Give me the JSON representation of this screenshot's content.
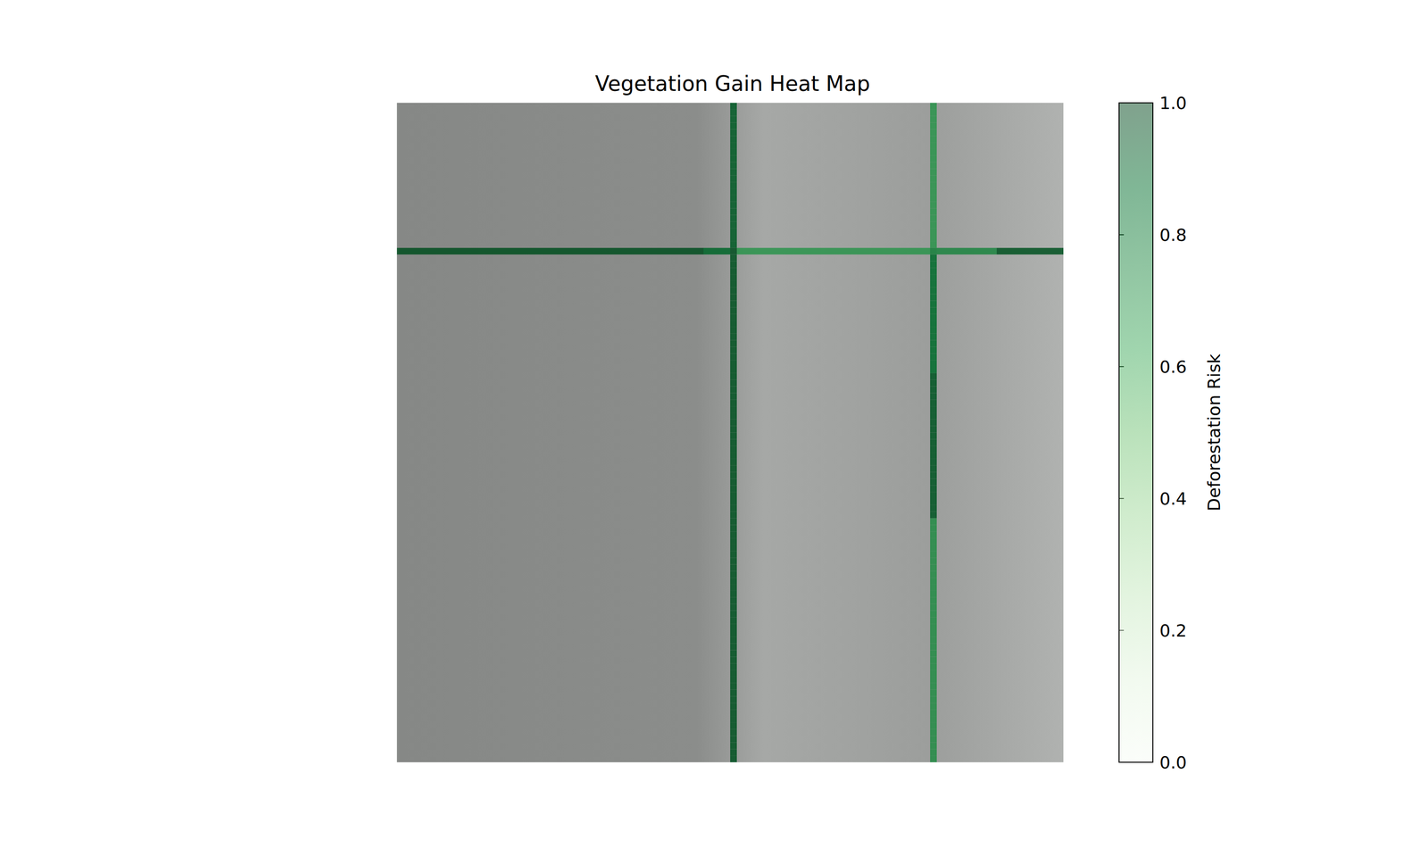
{
  "chart_data": {
    "type": "heatmap",
    "title": "Vegetation Gain Heat Map",
    "xlim": [
      0,
      100
    ],
    "ylim": [
      0,
      100
    ],
    "tick_labels": false,
    "colorbar": {
      "label": "Deforestation Risk",
      "range": [
        0,
        1
      ],
      "ticks": [
        {
          "value": 0,
          "label": "0.0"
        },
        {
          "value": 0.2,
          "label": "0.2"
        },
        {
          "value": 0.4,
          "label": "0.4"
        },
        {
          "value": 0.6,
          "label": "0.6"
        },
        {
          "value": 0.8,
          "label": "0.8"
        },
        {
          "value": 1,
          "label": "1.0"
        }
      ]
    },
    "cells": [
      [
        50,
        0,
        0.93
      ],
      [
        50,
        1,
        0.93
      ],
      [
        50,
        2,
        0.93
      ],
      [
        50,
        3,
        0.93
      ],
      [
        50,
        4,
        0.93
      ],
      [
        50,
        5,
        0.93
      ],
      [
        50,
        6,
        0.93
      ],
      [
        50,
        7,
        0.93
      ],
      [
        50,
        8,
        0.93
      ],
      [
        50,
        9,
        0.93
      ],
      [
        50,
        10,
        0.93
      ],
      [
        50,
        11,
        0.93
      ],
      [
        50,
        12,
        0.93
      ],
      [
        50,
        13,
        0.93
      ],
      [
        50,
        14,
        0.93
      ],
      [
        50,
        15,
        0.93
      ],
      [
        50,
        16,
        0.93
      ],
      [
        50,
        17,
        0.93
      ],
      [
        50,
        18,
        0.93
      ],
      [
        50,
        19,
        0.93
      ],
      [
        50,
        20,
        0.93
      ],
      [
        50,
        21,
        0.93
      ],
      [
        50,
        22,
        0.97
      ],
      [
        50,
        23,
        0.96
      ],
      [
        50,
        24,
        0.96
      ],
      [
        50,
        25,
        0.96
      ],
      [
        50,
        26,
        0.96
      ],
      [
        50,
        27,
        0.96
      ],
      [
        50,
        28,
        0.96
      ],
      [
        50,
        29,
        0.96
      ],
      [
        50,
        30,
        0.96
      ],
      [
        50,
        31,
        0.96
      ],
      [
        50,
        32,
        0.96
      ],
      [
        50,
        33,
        0.96
      ],
      [
        50,
        34,
        0.96
      ],
      [
        50,
        35,
        0.96
      ],
      [
        50,
        36,
        0.96
      ],
      [
        50,
        37,
        0.96
      ],
      [
        50,
        38,
        0.96
      ],
      [
        50,
        39,
        0.96
      ],
      [
        50,
        40,
        0.96
      ],
      [
        50,
        41,
        0.96
      ],
      [
        50,
        42,
        0.96
      ],
      [
        50,
        43,
        0.96
      ],
      [
        50,
        44,
        0.96
      ],
      [
        50,
        45,
        0.96
      ],
      [
        50,
        46,
        0.96
      ],
      [
        50,
        47,
        0.96
      ],
      [
        50,
        48,
        0.96
      ],
      [
        50,
        49,
        0.96
      ],
      [
        50,
        50,
        0.96
      ],
      [
        50,
        51,
        0.96
      ],
      [
        50,
        52,
        0.96
      ],
      [
        50,
        53,
        0.96
      ],
      [
        50,
        54,
        0.96
      ],
      [
        50,
        55,
        0.96
      ],
      [
        50,
        56,
        0.96
      ],
      [
        50,
        57,
        0.96
      ],
      [
        50,
        58,
        0.96
      ],
      [
        50,
        59,
        0.96
      ],
      [
        50,
        60,
        0.96
      ],
      [
        50,
        61,
        0.96
      ],
      [
        50,
        62,
        0.96
      ],
      [
        50,
        63,
        0.96
      ],
      [
        50,
        64,
        0.96
      ],
      [
        50,
        65,
        0.96
      ],
      [
        50,
        66,
        0.96
      ],
      [
        50,
        67,
        0.96
      ],
      [
        50,
        68,
        0.96
      ],
      [
        50,
        69,
        0.96
      ],
      [
        50,
        70,
        0.96
      ],
      [
        50,
        71,
        0.96
      ],
      [
        50,
        72,
        0.96
      ],
      [
        50,
        73,
        0.96
      ],
      [
        50,
        74,
        0.96
      ],
      [
        50,
        75,
        0.96
      ],
      [
        50,
        76,
        0.96
      ],
      [
        50,
        77,
        0.96
      ],
      [
        50,
        78,
        0.96
      ],
      [
        50,
        79,
        0.96
      ],
      [
        50,
        80,
        0.96
      ],
      [
        50,
        81,
        0.96
      ],
      [
        50,
        82,
        0.96
      ],
      [
        50,
        83,
        0.96
      ],
      [
        50,
        84,
        0.96
      ],
      [
        50,
        85,
        0.96
      ],
      [
        50,
        86,
        0.96
      ],
      [
        50,
        87,
        0.96
      ],
      [
        50,
        88,
        0.96
      ],
      [
        50,
        89,
        0.96
      ],
      [
        50,
        90,
        0.96
      ],
      [
        50,
        91,
        0.96
      ],
      [
        50,
        92,
        0.96
      ],
      [
        50,
        93,
        0.96
      ],
      [
        50,
        94,
        0.96
      ],
      [
        50,
        95,
        0.96
      ],
      [
        50,
        96,
        0.96
      ],
      [
        50,
        97,
        0.96
      ],
      [
        50,
        98,
        0.96
      ],
      [
        50,
        99,
        0.96
      ],
      [
        80,
        0,
        0.72
      ],
      [
        80,
        1,
        0.72
      ],
      [
        80,
        2,
        0.72
      ],
      [
        80,
        3,
        0.72
      ],
      [
        80,
        4,
        0.72
      ],
      [
        80,
        5,
        0.72
      ],
      [
        80,
        6,
        0.72
      ],
      [
        80,
        7,
        0.72
      ],
      [
        80,
        8,
        0.72
      ],
      [
        80,
        9,
        0.72
      ],
      [
        80,
        10,
        0.72
      ],
      [
        80,
        11,
        0.72
      ],
      [
        80,
        12,
        0.72
      ],
      [
        80,
        13,
        0.72
      ],
      [
        80,
        14,
        0.72
      ],
      [
        80,
        15,
        0.72
      ],
      [
        80,
        16,
        0.72
      ],
      [
        80,
        17,
        0.72
      ],
      [
        80,
        18,
        0.72
      ],
      [
        80,
        19,
        0.72
      ],
      [
        80,
        20,
        0.72
      ],
      [
        80,
        21,
        0.72
      ],
      [
        80,
        22,
        0.8
      ],
      [
        80,
        23,
        0.88
      ],
      [
        80,
        24,
        0.88
      ],
      [
        80,
        25,
        0.88
      ],
      [
        80,
        26,
        0.88
      ],
      [
        80,
        27,
        0.88
      ],
      [
        80,
        28,
        0.88
      ],
      [
        80,
        29,
        0.88
      ],
      [
        80,
        30,
        0.88
      ],
      [
        80,
        31,
        0.88
      ],
      [
        80,
        32,
        0.88
      ],
      [
        80,
        33,
        0.88
      ],
      [
        80,
        34,
        0.88
      ],
      [
        80,
        35,
        0.88
      ],
      [
        80,
        36,
        0.88
      ],
      [
        80,
        37,
        0.88
      ],
      [
        80,
        38,
        0.88
      ],
      [
        80,
        39,
        0.88
      ],
      [
        80,
        40,
        0.88
      ],
      [
        80,
        41,
        0.95
      ],
      [
        80,
        42,
        0.95
      ],
      [
        80,
        43,
        0.95
      ],
      [
        80,
        44,
        0.95
      ],
      [
        80,
        45,
        0.95
      ],
      [
        80,
        46,
        0.95
      ],
      [
        80,
        47,
        0.95
      ],
      [
        80,
        48,
        0.95
      ],
      [
        80,
        49,
        0.95
      ],
      [
        80,
        50,
        0.95
      ],
      [
        80,
        51,
        0.95
      ],
      [
        80,
        52,
        0.95
      ],
      [
        80,
        53,
        0.95
      ],
      [
        80,
        54,
        0.95
      ],
      [
        80,
        55,
        0.95
      ],
      [
        80,
        56,
        0.95
      ],
      [
        80,
        57,
        0.95
      ],
      [
        80,
        58,
        0.95
      ],
      [
        80,
        59,
        0.95
      ],
      [
        80,
        60,
        0.95
      ],
      [
        80,
        61,
        0.95
      ],
      [
        80,
        62,
        0.95
      ],
      [
        80,
        63,
        0.75
      ],
      [
        80,
        64,
        0.75
      ],
      [
        80,
        65,
        0.75
      ],
      [
        80,
        66,
        0.75
      ],
      [
        80,
        67,
        0.75
      ],
      [
        80,
        68,
        0.75
      ],
      [
        80,
        69,
        0.75
      ],
      [
        80,
        70,
        0.75
      ],
      [
        80,
        71,
        0.75
      ],
      [
        80,
        72,
        0.75
      ],
      [
        80,
        73,
        0.75
      ],
      [
        80,
        74,
        0.75
      ],
      [
        80,
        75,
        0.75
      ],
      [
        80,
        76,
        0.75
      ],
      [
        80,
        77,
        0.75
      ],
      [
        80,
        78,
        0.75
      ],
      [
        80,
        79,
        0.75
      ],
      [
        80,
        80,
        0.75
      ],
      [
        80,
        81,
        0.75
      ],
      [
        80,
        82,
        0.75
      ],
      [
        80,
        83,
        0.75
      ],
      [
        80,
        84,
        0.75
      ],
      [
        80,
        85,
        0.75
      ],
      [
        80,
        86,
        0.75
      ],
      [
        80,
        87,
        0.75
      ],
      [
        80,
        88,
        0.75
      ],
      [
        80,
        89,
        0.75
      ],
      [
        80,
        90,
        0.75
      ],
      [
        80,
        91,
        0.75
      ],
      [
        80,
        92,
        0.75
      ],
      [
        80,
        93,
        0.75
      ],
      [
        80,
        94,
        0.75
      ],
      [
        80,
        95,
        0.75
      ],
      [
        80,
        96,
        0.75
      ],
      [
        80,
        97,
        0.75
      ],
      [
        80,
        98,
        0.75
      ],
      [
        80,
        99,
        0.75
      ],
      [
        0,
        22,
        0.97
      ],
      [
        1,
        22,
        0.97
      ],
      [
        2,
        22,
        0.97
      ],
      [
        3,
        22,
        0.97
      ],
      [
        4,
        22,
        0.97
      ],
      [
        5,
        22,
        0.97
      ],
      [
        6,
        22,
        0.97
      ],
      [
        7,
        22,
        0.97
      ],
      [
        8,
        22,
        0.97
      ],
      [
        9,
        22,
        0.97
      ],
      [
        10,
        22,
        0.97
      ],
      [
        11,
        22,
        0.97
      ],
      [
        12,
        22,
        0.97
      ],
      [
        13,
        22,
        0.97
      ],
      [
        14,
        22,
        0.97
      ],
      [
        15,
        22,
        0.97
      ],
      [
        16,
        22,
        0.97
      ],
      [
        17,
        22,
        0.97
      ],
      [
        18,
        22,
        0.97
      ],
      [
        19,
        22,
        0.97
      ],
      [
        20,
        22,
        0.97
      ],
      [
        21,
        22,
        0.97
      ],
      [
        22,
        22,
        0.97
      ],
      [
        23,
        22,
        0.97
      ],
      [
        24,
        22,
        0.97
      ],
      [
        25,
        22,
        0.97
      ],
      [
        26,
        22,
        0.97
      ],
      [
        27,
        22,
        0.97
      ],
      [
        28,
        22,
        0.97
      ],
      [
        29,
        22,
        0.97
      ],
      [
        30,
        22,
        0.97
      ],
      [
        31,
        22,
        0.97
      ],
      [
        32,
        22,
        0.97
      ],
      [
        33,
        22,
        0.97
      ],
      [
        34,
        22,
        0.97
      ],
      [
        35,
        22,
        0.97
      ],
      [
        36,
        22,
        0.97
      ],
      [
        37,
        22,
        0.97
      ],
      [
        38,
        22,
        0.97
      ],
      [
        39,
        22,
        0.97
      ],
      [
        40,
        22,
        0.97
      ],
      [
        41,
        22,
        0.97
      ],
      [
        42,
        22,
        0.97
      ],
      [
        43,
        22,
        0.97
      ],
      [
        44,
        22,
        0.97
      ],
      [
        45,
        22,
        0.97
      ],
      [
        46,
        22,
        0.9
      ],
      [
        47,
        22,
        0.9
      ],
      [
        48,
        22,
        0.9
      ],
      [
        49,
        22,
        0.9
      ],
      [
        51,
        22,
        0.72
      ],
      [
        52,
        22,
        0.72
      ],
      [
        53,
        22,
        0.72
      ],
      [
        54,
        22,
        0.72
      ],
      [
        55,
        22,
        0.72
      ],
      [
        56,
        22,
        0.72
      ],
      [
        57,
        22,
        0.72
      ],
      [
        58,
        22,
        0.72
      ],
      [
        59,
        22,
        0.72
      ],
      [
        60,
        22,
        0.72
      ],
      [
        61,
        22,
        0.72
      ],
      [
        62,
        22,
        0.72
      ],
      [
        63,
        22,
        0.72
      ],
      [
        64,
        22,
        0.72
      ],
      [
        65,
        22,
        0.72
      ],
      [
        66,
        22,
        0.72
      ],
      [
        67,
        22,
        0.72
      ],
      [
        68,
        22,
        0.72
      ],
      [
        69,
        22,
        0.72
      ],
      [
        70,
        22,
        0.72
      ],
      [
        71,
        22,
        0.72
      ],
      [
        72,
        22,
        0.72
      ],
      [
        73,
        22,
        0.72
      ],
      [
        74,
        22,
        0.72
      ],
      [
        75,
        22,
        0.72
      ],
      [
        76,
        22,
        0.72
      ],
      [
        77,
        22,
        0.72
      ],
      [
        78,
        22,
        0.72
      ],
      [
        79,
        22,
        0.72
      ],
      [
        81,
        22,
        0.78
      ],
      [
        82,
        22,
        0.78
      ],
      [
        83,
        22,
        0.78
      ],
      [
        84,
        22,
        0.78
      ],
      [
        85,
        22,
        0.78
      ],
      [
        86,
        22,
        0.78
      ],
      [
        87,
        22,
        0.78
      ],
      [
        88,
        22,
        0.78
      ],
      [
        89,
        22,
        0.78
      ],
      [
        90,
        22,
        0.96
      ],
      [
        91,
        22,
        0.96
      ],
      [
        92,
        22,
        0.96
      ],
      [
        93,
        22,
        0.96
      ],
      [
        94,
        22,
        0.96
      ],
      [
        95,
        22,
        0.96
      ],
      [
        96,
        22,
        0.96
      ],
      [
        97,
        22,
        0.96
      ],
      [
        98,
        22,
        0.96
      ],
      [
        99,
        22,
        0.96
      ]
    ]
  }
}
